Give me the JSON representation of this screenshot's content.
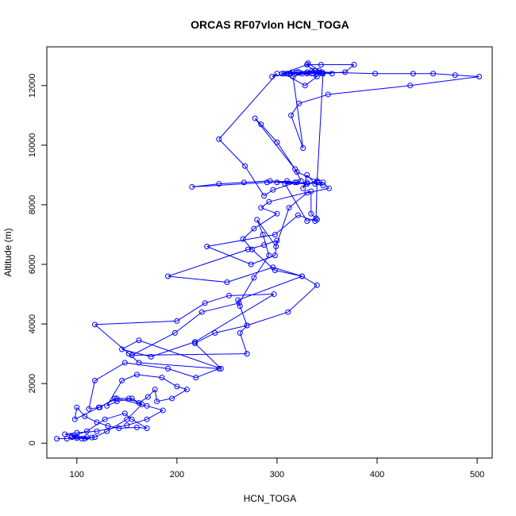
{
  "chart_data": {
    "type": "line",
    "title": "ORCAS RF07vlon HCN_TOGA",
    "xlabel": "HCN_TOGA",
    "ylabel": "Altitude (m)",
    "xlim": [
      70,
      515
    ],
    "ylim": [
      -500,
      13300
    ],
    "x_ticks": [
      100,
      200,
      300,
      400,
      500
    ],
    "y_ticks": [
      0,
      2000,
      4000,
      6000,
      8000,
      10000,
      12000
    ],
    "grid": false,
    "legend": "none",
    "line_color": "#0000ff",
    "series": [
      {
        "points": [
          [
            80,
            150
          ],
          [
            90,
            150
          ],
          [
            95,
            200
          ],
          [
            100,
            170
          ],
          [
            110,
            200
          ],
          [
            108,
            150
          ],
          [
            115,
            190
          ],
          [
            100,
            220
          ],
          [
            88,
            300
          ],
          [
            100,
            350
          ],
          [
            120,
            400
          ],
          [
            150,
            600
          ],
          [
            170,
            800
          ],
          [
            186,
            1100
          ],
          [
            170,
            1250
          ],
          [
            140,
            1500
          ],
          [
            122,
            1200
          ],
          [
            98,
            800
          ],
          [
            100,
            1200
          ],
          [
            108,
            900
          ],
          [
            120,
            700
          ],
          [
            131,
            580
          ],
          [
            142,
            500
          ],
          [
            160,
            530
          ],
          [
            170,
            500
          ],
          [
            155,
            800
          ],
          [
            148,
            1000
          ],
          [
            128,
            800
          ],
          [
            110,
            400
          ],
          [
            95,
            230
          ],
          [
            105,
            150
          ],
          [
            118,
            200
          ],
          [
            130,
            400
          ],
          [
            150,
            800
          ],
          [
            165,
            1300
          ],
          [
            155,
            1500
          ],
          [
            140,
            1400
          ],
          [
            130,
            1250
          ],
          [
            145,
            2100
          ],
          [
            160,
            2300
          ],
          [
            185,
            2200
          ],
          [
            200,
            1900
          ],
          [
            210,
            1800
          ],
          [
            195,
            1500
          ],
          [
            180,
            1400
          ],
          [
            178,
            1800
          ],
          [
            171,
            1550
          ],
          [
            162,
            1350
          ],
          [
            152,
            1500
          ],
          [
            138,
            1500
          ],
          [
            123,
            1200
          ],
          [
            112,
            1150
          ],
          [
            118,
            2100
          ],
          [
            148,
            2700
          ],
          [
            191,
            2500
          ],
          [
            219,
            2200
          ],
          [
            242,
            2500
          ],
          [
            162,
            2700
          ],
          [
            152,
            3000
          ],
          [
            118,
            3980
          ],
          [
            200,
            4100
          ],
          [
            228,
            4700
          ],
          [
            252,
            4950
          ],
          [
            297,
            5000
          ],
          [
            218,
            3400
          ],
          [
            174,
            2900
          ],
          [
            145,
            3150
          ],
          [
            162,
            3450
          ],
          [
            244,
            2500
          ],
          [
            218,
            3350
          ],
          [
            238,
            3700
          ],
          [
            270,
            3950
          ],
          [
            263,
            4600
          ],
          [
            261,
            4800
          ],
          [
            325,
            5600
          ],
          [
            296,
            5900
          ],
          [
            250,
            5400
          ],
          [
            191,
            5600
          ],
          [
            271,
            6500
          ],
          [
            287,
            6650
          ],
          [
            300,
            6800
          ],
          [
            298,
            6300
          ],
          [
            274,
            6000
          ],
          [
            230,
            6600
          ],
          [
            298,
            7000
          ],
          [
            321,
            7650
          ],
          [
            338,
            7450
          ],
          [
            340,
            7500
          ],
          [
            334,
            7700
          ],
          [
            334,
            8450
          ],
          [
            292,
            8100
          ],
          [
            284,
            7900
          ],
          [
            300,
            7700
          ],
          [
            277,
            7200
          ],
          [
            266,
            6850
          ],
          [
            275,
            6500
          ],
          [
            298,
            5800
          ],
          [
            325,
            5600
          ],
          [
            340,
            5300
          ],
          [
            311,
            4400
          ],
          [
            270,
            3950
          ],
          [
            263,
            3700
          ],
          [
            270,
            3000
          ],
          [
            155,
            2950
          ],
          [
            198,
            3700
          ],
          [
            225,
            4400
          ],
          [
            262,
            4700
          ],
          [
            277,
            5550
          ],
          [
            292,
            6300
          ],
          [
            286,
            7000
          ],
          [
            280,
            7500
          ],
          [
            299,
            6600
          ],
          [
            312,
            7900
          ],
          [
            330,
            8400
          ],
          [
            352,
            8550
          ],
          [
            346,
            8750
          ],
          [
            330,
            8700
          ],
          [
            320,
            8750
          ],
          [
            293,
            8800
          ],
          [
            267,
            8750
          ],
          [
            242,
            8700
          ],
          [
            215,
            8600
          ],
          [
            290,
            8750
          ],
          [
            318,
            8750
          ],
          [
            310,
            8800
          ],
          [
            300,
            8750
          ],
          [
            330,
            8700
          ],
          [
            340,
            8800
          ],
          [
            320,
            9100
          ],
          [
            300,
            10100
          ],
          [
            284,
            10700
          ],
          [
            278,
            10900
          ],
          [
            318,
            9200
          ],
          [
            324,
            8800
          ],
          [
            296,
            8500
          ],
          [
            287,
            8300
          ],
          [
            268,
            9300
          ],
          [
            242,
            10200
          ],
          [
            300,
            12400
          ],
          [
            295,
            12300
          ],
          [
            310,
            12400
          ],
          [
            320,
            12450
          ],
          [
            330,
            12400
          ],
          [
            340,
            12450
          ],
          [
            345,
            12400
          ],
          [
            335,
            12500
          ],
          [
            325,
            12400
          ],
          [
            315,
            12450
          ],
          [
            305,
            12400
          ],
          [
            330,
            12700
          ],
          [
            340,
            12400
          ],
          [
            368,
            12450
          ],
          [
            377,
            12700
          ],
          [
            344,
            12700
          ],
          [
            330,
            12700
          ],
          [
            331,
            12750
          ],
          [
            345,
            12450
          ],
          [
            398,
            12400
          ],
          [
            436,
            12400
          ],
          [
            456,
            12400
          ],
          [
            478,
            12350
          ],
          [
            502,
            12300
          ],
          [
            433,
            12000
          ],
          [
            351,
            11700
          ],
          [
            322,
            11400
          ],
          [
            314,
            11000
          ],
          [
            326,
            9900
          ],
          [
            316,
            12300
          ],
          [
            338,
            12500
          ],
          [
            307,
            12400
          ],
          [
            328,
            12000
          ],
          [
            340,
            12300
          ],
          [
            320,
            12450
          ],
          [
            313,
            12400
          ],
          [
            335,
            12400
          ],
          [
            342,
            12500
          ],
          [
            355,
            12400
          ],
          [
            330,
            12450
          ],
          [
            322,
            12450
          ],
          [
            314,
            12400
          ],
          [
            346,
            12400
          ],
          [
            340,
            8750
          ],
          [
            339,
            7550
          ],
          [
            330,
            7450
          ],
          [
            308,
            8700
          ],
          [
            330,
            8750
          ],
          [
            326,
            8550
          ],
          [
            330,
            9000
          ],
          [
            338,
            8700
          ],
          [
            346,
            8650
          ],
          [
            342,
            8750
          ]
        ]
      }
    ]
  }
}
